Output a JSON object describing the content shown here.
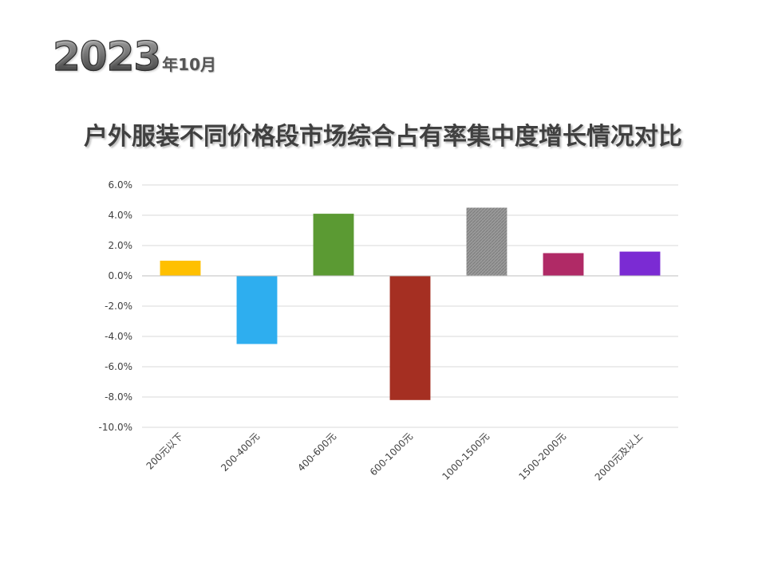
{
  "header": {
    "year": "2023",
    "suffix": "年10月"
  },
  "chart_data": {
    "type": "bar",
    "title": "户外服装不同价格段市场综合占有率集中度增长情况对比",
    "xlabel": "",
    "ylabel": "",
    "categories": [
      "200元以下",
      "200-400元",
      "400-600元",
      "600-1000元",
      "1000-1500元",
      "1500-2000元",
      "2000元及以上"
    ],
    "values": [
      1.0,
      -4.5,
      4.1,
      -8.2,
      4.5,
      1.5,
      1.6
    ],
    "colors": [
      "#FFC000",
      "#2EAEEF",
      "#5B9A33",
      "#A52F22",
      "#8F8F8F",
      "#B02A66",
      "#7B2BD3"
    ],
    "ylim": [
      -10,
      6
    ],
    "yticks": [
      6,
      4,
      2,
      0,
      -2,
      -4,
      -6,
      -8,
      -10
    ],
    "ytick_labels": [
      "6.0%",
      "4.0%",
      "2.0%",
      "0.0%",
      "-2.0%",
      "-4.0%",
      "-6.0%",
      "-8.0%",
      "-10.0%"
    ],
    "grid": true,
    "legend": "none",
    "gridline_color": "#d9d9d9",
    "axis_color": "#bfbfbf"
  }
}
